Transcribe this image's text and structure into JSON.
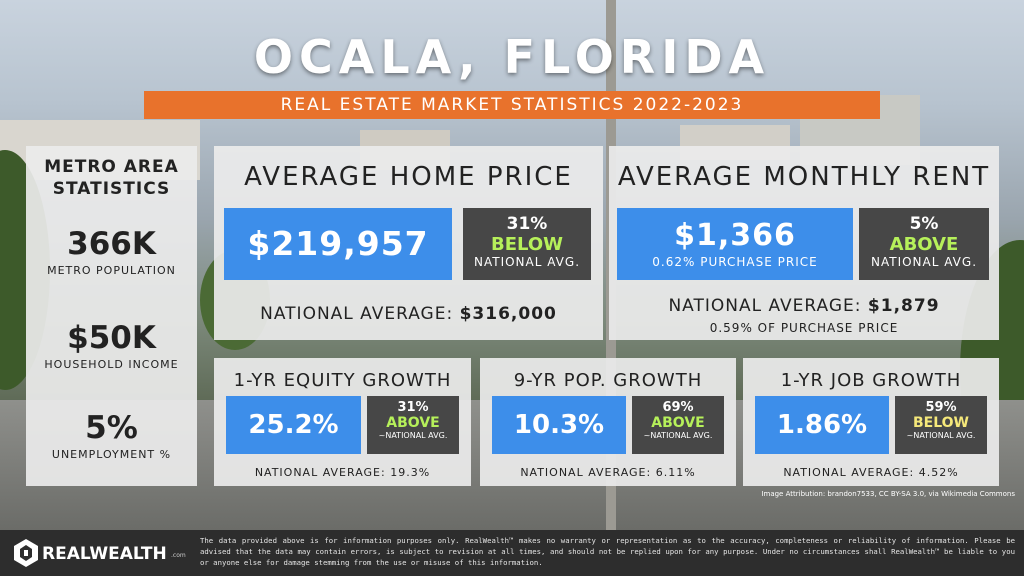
{
  "header": {
    "title": "OCALA, FLORIDA",
    "subtitle": "REAL ESTATE MARKET STATISTICS 2022-2023"
  },
  "metro": {
    "heading_line1": "METRO AREA",
    "heading_line2": "STATISTICS",
    "stats": [
      {
        "value": "366K",
        "label": "METRO POPULATION"
      },
      {
        "value": "$50K",
        "label": "HOUSEHOLD INCOME"
      },
      {
        "value": "5%",
        "label": "UNEMPLOYMENT %"
      }
    ]
  },
  "home_price": {
    "title": "AVERAGE HOME PRICE",
    "value": "$219,957",
    "pct": "31%",
    "direction": "BELOW",
    "compare": "NATIONAL AVG.",
    "national_label": "NATIONAL AVERAGE:",
    "national_value": "$316,000"
  },
  "rent": {
    "title": "AVERAGE MONTHLY RENT",
    "value": "$1,366",
    "sub": "0.62% PURCHASE PRICE",
    "pct": "5%",
    "direction": "ABOVE",
    "compare": "NATIONAL AVG.",
    "national_label": "NATIONAL AVERAGE:",
    "national_value": "$1,879",
    "national_sub": "0.59% OF PURCHASE PRICE"
  },
  "equity": {
    "title": "1-YR EQUITY GROWTH",
    "value": "25.2%",
    "pct": "31%",
    "direction": "ABOVE",
    "compare": "~NATIONAL AVG.",
    "national": "NATIONAL AVERAGE: 19.3%"
  },
  "population": {
    "title": "9-YR POP. GROWTH",
    "value": "10.3%",
    "pct": "69%",
    "direction": "ABOVE",
    "compare": "~NATIONAL AVG.",
    "national": "NATIONAL AVERAGE: 6.11%"
  },
  "jobs": {
    "title": "1-YR JOB GROWTH",
    "value": "1.86%",
    "pct": "59%",
    "direction": "BELOW",
    "compare": "~NATIONAL AVG.",
    "national": "NATIONAL AVERAGE: 4.52%"
  },
  "attribution": "Image Attribution: brandon7533, CC BY-SA 3.0, via Wikimedia Commons",
  "footer": {
    "brand": "REALWEALTH",
    "brand_suffix": ".com",
    "disclaimer": "The data provided above is for information purposes only. RealWealth™ makes no warranty or representation as to the accuracy, completeness or reliability of information. Please be advised that the data may contain errors, is subject to revision at all times, and should not be replied upon for any purpose. Under no circumstances shall RealWealth™ be liable to you or anyone else for damage stemming from the use or misuse of this information."
  },
  "colors": {
    "accent_orange": "#e8722c",
    "value_blue": "#3d8eea",
    "compare_gray": "#474747",
    "above_green": "#b6f05a",
    "below_yellow": "#f5e87a"
  }
}
